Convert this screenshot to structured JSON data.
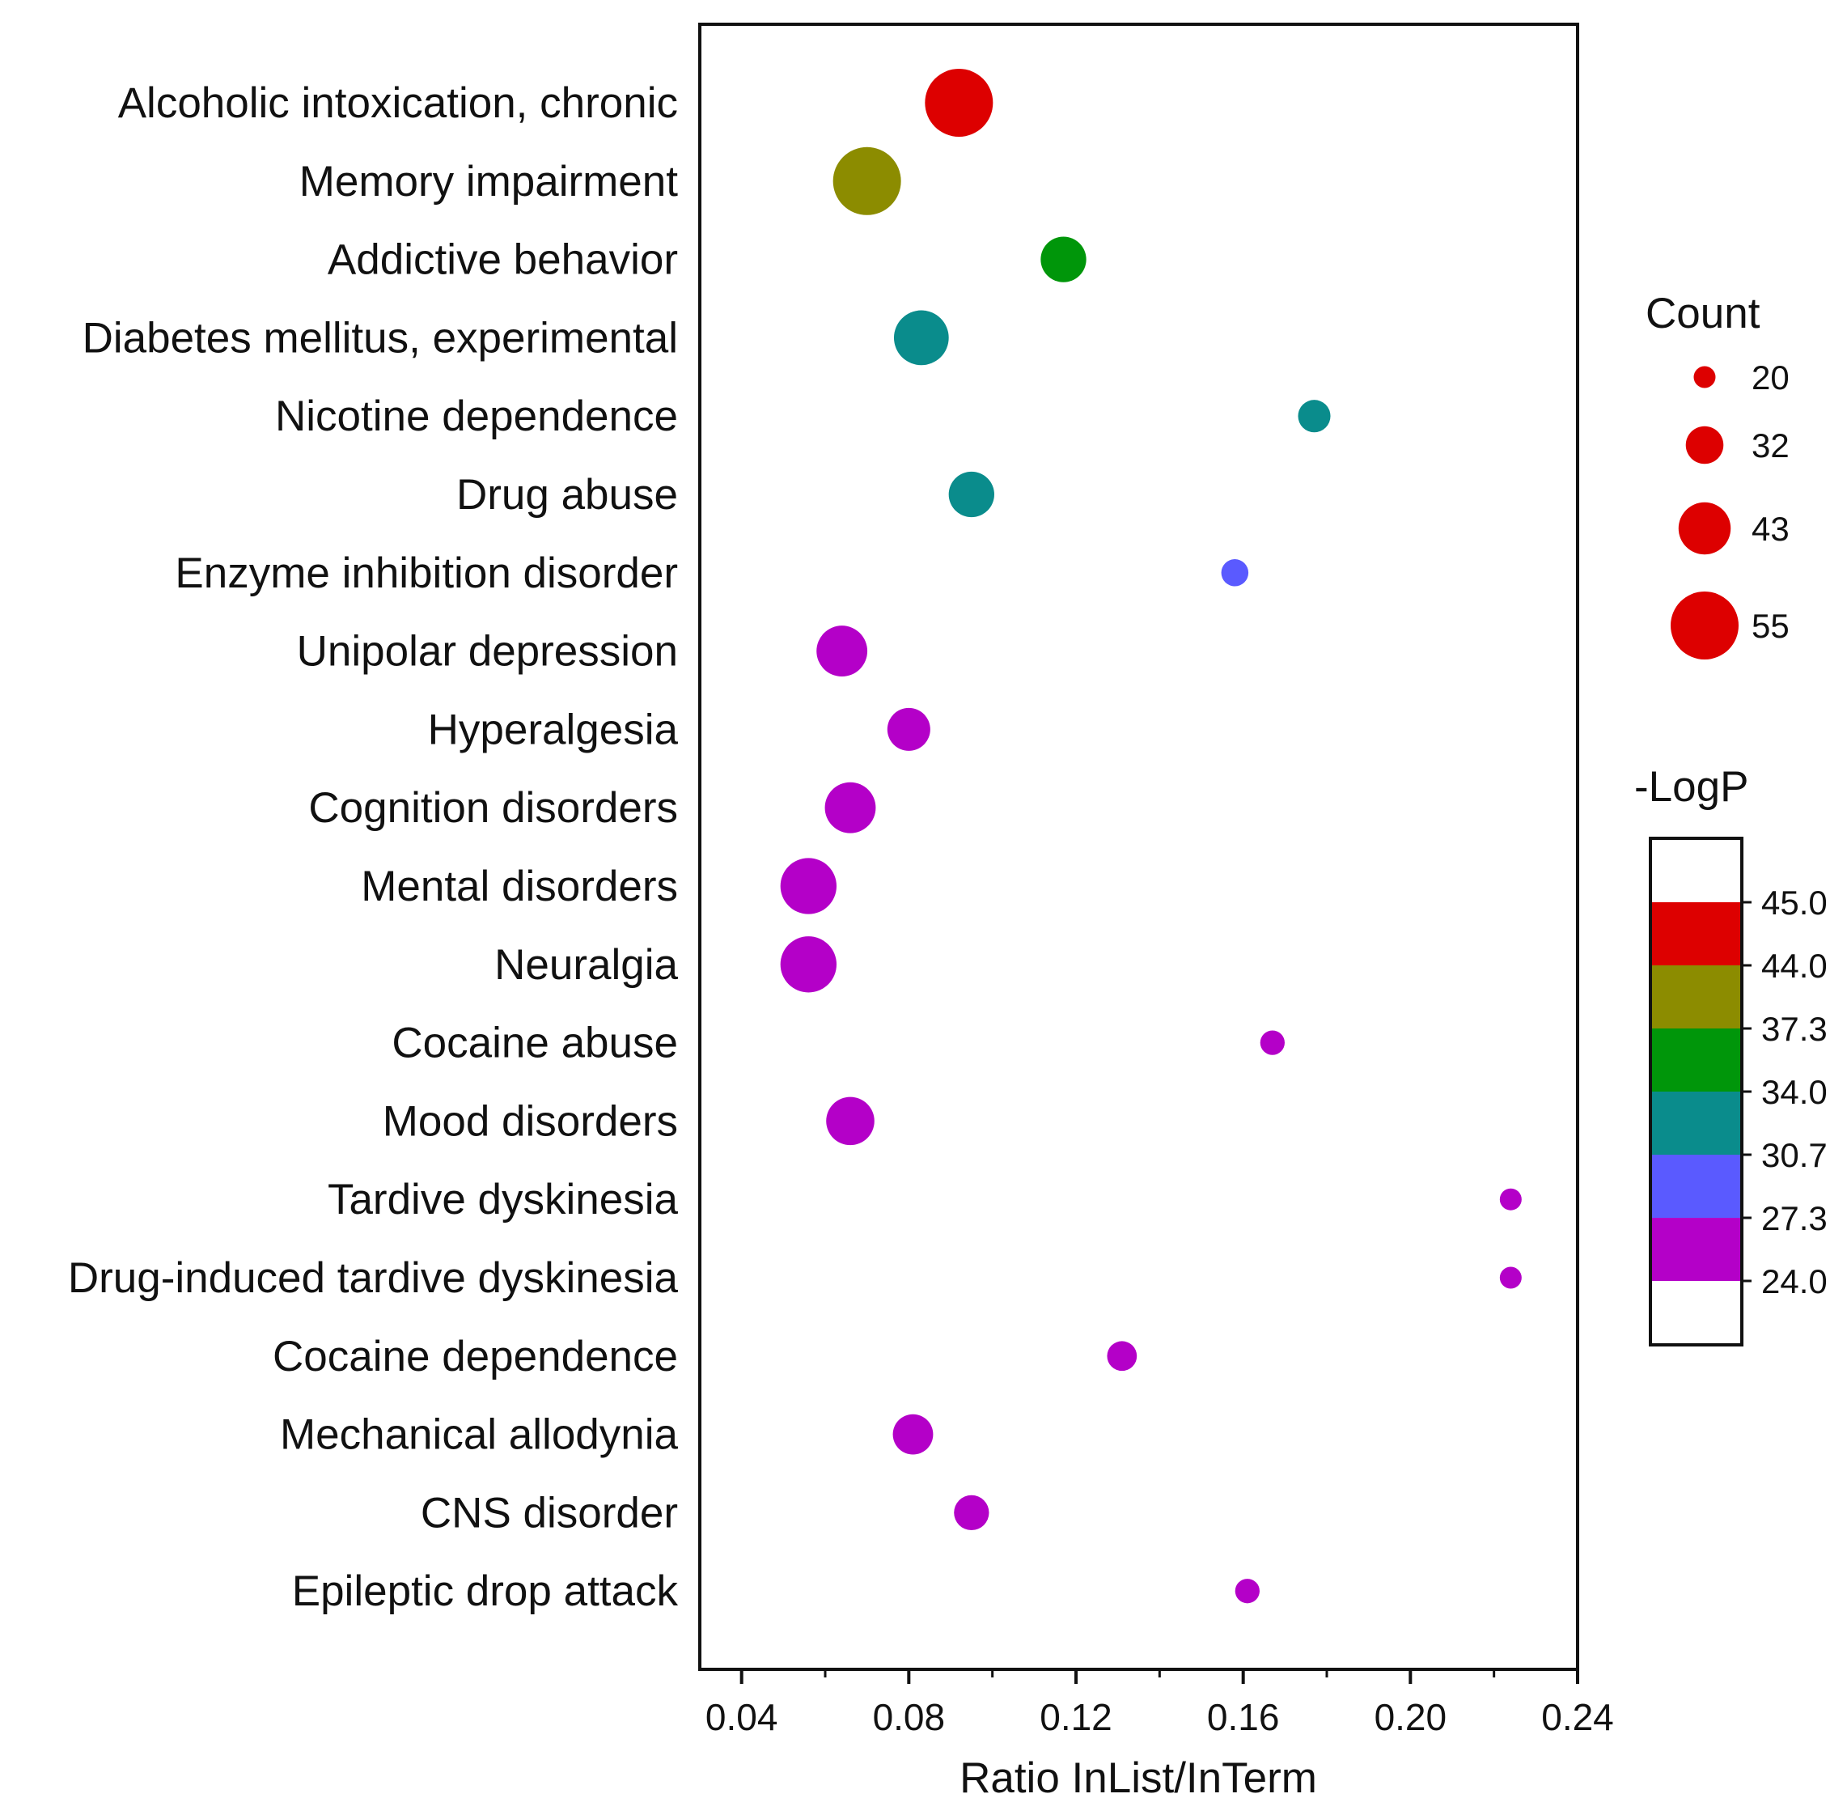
{
  "chart_data": {
    "type": "scatter",
    "subtype": "bubble",
    "xlabel": "Ratio InList/InTerm",
    "xlim": [
      0.03,
      0.24
    ],
    "xticks": [
      "0.04",
      "0.08",
      "0.12",
      "0.16",
      "0.20",
      "0.24"
    ],
    "xtick_values": [
      0.04,
      0.08,
      0.12,
      0.16,
      0.2,
      0.24
    ],
    "points": [
      {
        "term": "Alcoholic intoxication, chronic",
        "ratio": 0.092,
        "count": 55,
        "neglogp": 44.5
      },
      {
        "term": "Memory impairment",
        "ratio": 0.07,
        "count": 55,
        "neglogp": 40.0
      },
      {
        "term": "Addictive behavior",
        "ratio": 0.117,
        "count": 38,
        "neglogp": 35.5
      },
      {
        "term": "Diabetes mellitus, experimental",
        "ratio": 0.083,
        "count": 45,
        "neglogp": 32.0
      },
      {
        "term": "Nicotine dependence",
        "ratio": 0.177,
        "count": 28,
        "neglogp": 32.0
      },
      {
        "term": "Drug abuse",
        "ratio": 0.095,
        "count": 38,
        "neglogp": 32.0
      },
      {
        "term": "Enzyme inhibition disorder",
        "ratio": 0.158,
        "count": 24,
        "neglogp": 29.0
      },
      {
        "term": "Unipolar depression",
        "ratio": 0.064,
        "count": 42,
        "neglogp": 25.5
      },
      {
        "term": "Hyperalgesia",
        "ratio": 0.08,
        "count": 36,
        "neglogp": 25.5
      },
      {
        "term": "Cognition disorders",
        "ratio": 0.066,
        "count": 42,
        "neglogp": 25.5
      },
      {
        "term": "Mental disorders",
        "ratio": 0.056,
        "count": 46,
        "neglogp": 25.5
      },
      {
        "term": "Neuralgia",
        "ratio": 0.056,
        "count": 46,
        "neglogp": 25.5
      },
      {
        "term": "Cocaine abuse",
        "ratio": 0.167,
        "count": 22,
        "neglogp": 25.5
      },
      {
        "term": "Mood disorders",
        "ratio": 0.066,
        "count": 40,
        "neglogp": 25.5
      },
      {
        "term": "Tardive dyskinesia",
        "ratio": 0.224,
        "count": 20,
        "neglogp": 25.5
      },
      {
        "term": "Drug-induced tardive dyskinesia",
        "ratio": 0.224,
        "count": 20,
        "neglogp": 25.5
      },
      {
        "term": "Cocaine dependence",
        "ratio": 0.131,
        "count": 26,
        "neglogp": 25.5
      },
      {
        "term": "Mechanical allodynia",
        "ratio": 0.081,
        "count": 34,
        "neglogp": 25.5
      },
      {
        "term": "CNS disorder",
        "ratio": 0.095,
        "count": 30,
        "neglogp": 25.5
      },
      {
        "term": "Epileptic drop attack",
        "ratio": 0.161,
        "count": 22,
        "neglogp": 25.5
      }
    ],
    "size_legend": {
      "title": "Count",
      "values": [
        20,
        32,
        43,
        55
      ],
      "labels": [
        "20",
        "32",
        "43",
        "55"
      ],
      "color": "#dd0000"
    },
    "color_legend": {
      "title": "-LogP",
      "labels": [
        "45.0",
        "44.0",
        "37.3",
        "34.0",
        "30.7",
        "27.3",
        "24.0"
      ],
      "bins": [
        {
          "min": 44.0,
          "max": 45.0,
          "color": "#dd0000"
        },
        {
          "min": 37.3,
          "max": 44.0,
          "color": "#8c8c00"
        },
        {
          "min": 34.0,
          "max": 37.3,
          "color": "#00960a"
        },
        {
          "min": 30.7,
          "max": 34.0,
          "color": "#0a8c8c"
        },
        {
          "min": 27.3,
          "max": 30.7,
          "color": "#5a5aff"
        },
        {
          "min": 24.0,
          "max": 27.3,
          "color": "#b400c8"
        }
      ]
    }
  }
}
